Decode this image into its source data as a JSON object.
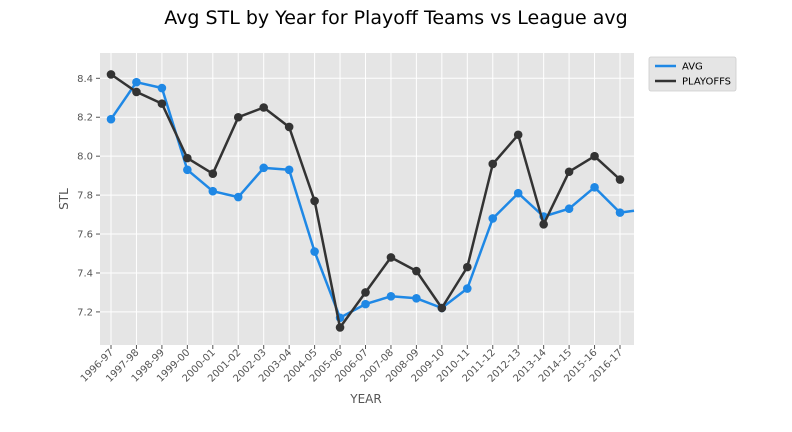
{
  "chart_data": {
    "type": "line",
    "title": "Avg STL by Year for Playoff Teams vs League avg",
    "xlabel": "YEAR",
    "ylabel": "STL",
    "categories": [
      "1996-97",
      "1997-98",
      "1998-99",
      "1999-00",
      "2000-01",
      "2001-02",
      "2002-03",
      "2003-04",
      "2004-05",
      "2005-06",
      "2006-07",
      "2007-08",
      "2008-09",
      "2009-10",
      "2010-11",
      "2011-12",
      "2012-13",
      "2013-14",
      "2014-15",
      "2015-16",
      "2016-17"
    ],
    "ylim": [
      7.03,
      8.53
    ],
    "yticks": [
      7.2,
      7.4,
      7.6,
      7.8,
      8.0,
      8.2,
      8.4
    ],
    "ytick_labels": [
      "7.2",
      "7.4",
      "7.6",
      "7.8",
      "8.0",
      "8.2",
      "8.4"
    ],
    "grid": true,
    "legend_position": "outside-top-right",
    "series": [
      {
        "name": "AVG",
        "color": "#1f88e5",
        "values": [
          8.19,
          8.38,
          8.35,
          7.93,
          7.82,
          7.79,
          7.94,
          7.93,
          7.51,
          7.17,
          7.24,
          7.28,
          7.27,
          7.22,
          7.32,
          7.68,
          7.81,
          7.69,
          7.73,
          7.84,
          7.71
        ]
      },
      {
        "name": "PLAYOFFS",
        "color": "#333333",
        "values": [
          8.42,
          8.33,
          8.27,
          7.99,
          7.91,
          8.2,
          8.25,
          8.15,
          7.77,
          7.12,
          7.3,
          7.48,
          7.41,
          7.22,
          7.43,
          7.96,
          8.11,
          7.65,
          7.92,
          8.0,
          7.88
        ]
      }
    ]
  }
}
